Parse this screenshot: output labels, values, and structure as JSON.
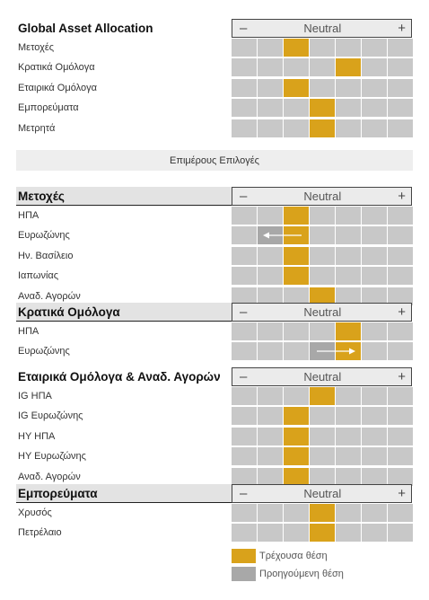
{
  "scale_labels": {
    "minus": "–",
    "neutral": "Neutral",
    "plus": "+"
  },
  "banner": "Επιμέρους Επιλογές",
  "colors": {
    "current": "#d9a21b",
    "previous": "#a8a8a8",
    "empty": "#c8c8c8"
  },
  "sections": [
    {
      "title": "Global Asset Allocation",
      "top": 21,
      "header_bg": false,
      "rows": [
        {
          "label": "Μετοχές",
          "current": 3
        },
        {
          "label": "Κρατικά Ομόλογα",
          "current": 5
        },
        {
          "label": "Εταιρικά Ομόλογα",
          "current": 3
        },
        {
          "label": "Εμπορεύματα",
          "current": 4
        },
        {
          "label": "Μετρητά",
          "current": 4
        }
      ]
    },
    {
      "title": "Μετοχές",
      "top": 208,
      "header_bg": true,
      "rows": [
        {
          "label": "ΗΠΑ",
          "current": 3
        },
        {
          "label": "Ευρωζώνης",
          "current": 3,
          "previous": 2,
          "arrow": "left"
        },
        {
          "label": "Ην. Βασίλειο",
          "current": 3
        },
        {
          "label": "Ιαπωνίας",
          "current": 3
        },
        {
          "label": "Αναδ. Αγορών",
          "current": 4
        }
      ]
    },
    {
      "title": "Κρατικά Ομόλογα",
      "top": 337,
      "header_bg": true,
      "rows": [
        {
          "label": "ΗΠΑ",
          "current": 5
        },
        {
          "label": "Ευρωζώνης",
          "current": 5,
          "previous": 4,
          "arrow": "right"
        }
      ]
    },
    {
      "title": "Εταιρικά Ομόλογα & Αναδ. Αγορών",
      "top": 409,
      "header_bg": false,
      "rows": [
        {
          "label": "IG ΗΠΑ",
          "current": 4
        },
        {
          "label": "IG Ευρωζώνης",
          "current": 3
        },
        {
          "label": "HY ΗΠΑ",
          "current": 3
        },
        {
          "label": "HY Ευρωζώνης",
          "current": 3
        },
        {
          "label": "Αναδ. Αγορών",
          "current": 3
        }
      ]
    },
    {
      "title": "Εμπορεύματα",
      "top": 539,
      "header_bg": true,
      "rows": [
        {
          "label": "Χρυσός",
          "current": 4
        },
        {
          "label": "Πετρέλαιο",
          "current": 4
        }
      ]
    }
  ],
  "legend": [
    {
      "label": "Τρέχουσα θέση",
      "type": "current"
    },
    {
      "label": "Προηγούμενη θέση",
      "type": "previous"
    }
  ]
}
